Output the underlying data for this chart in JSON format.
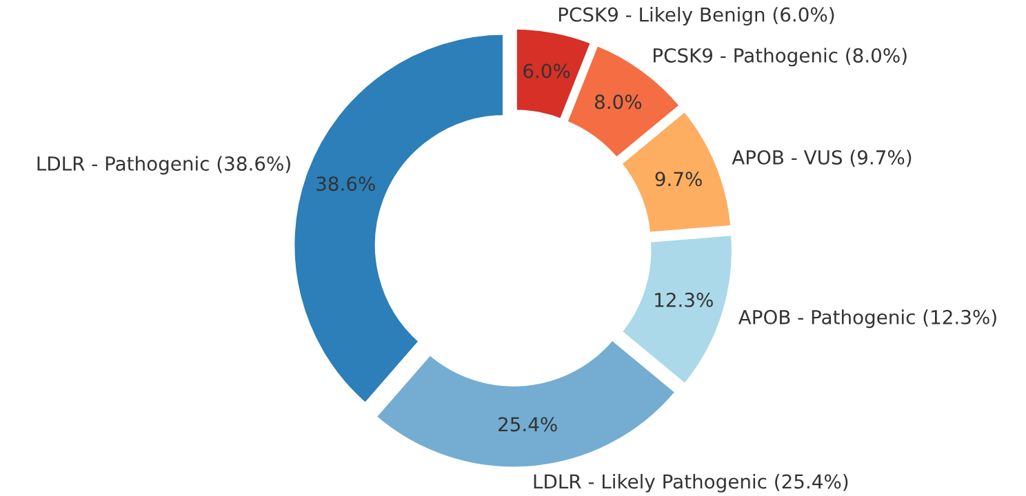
{
  "chart_data": {
    "type": "donut",
    "categories": [
      "PCSK9 - Likely Benign (6.0%)",
      "PCSK9 - Pathogenic (8.0%)",
      "APOB - VUS (9.7%)",
      "APOB - Pathogenic (12.3%)",
      "LDLR - Likely Pathogenic (25.4%)",
      "LDLR - Pathogenic (38.6%)"
    ],
    "values": [
      6.0,
      8.0,
      9.7,
      12.3,
      25.4,
      38.6
    ],
    "colors": [
      "#d73027",
      "#f46d43",
      "#fdae61",
      "#abd9e9",
      "#74add1",
      "#2c7fb8"
    ],
    "value_labels": [
      "6.0%",
      "8.0%",
      "9.7%",
      "12.3%",
      "25.4%",
      "38.6%"
    ],
    "legend": false
  }
}
